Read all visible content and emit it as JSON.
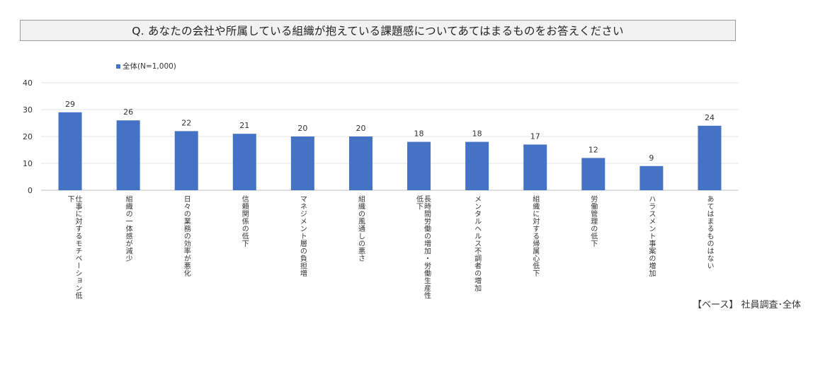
{
  "chart_data": {
    "type": "bar",
    "title": "Q. あなたの会社や所属している組織が抱えている課題感についてあてはまるものをお答えください",
    "categories": [
      "仕事に対するモチベーション低下",
      "組織の一体感が減少",
      "日々の業務の効率が悪化",
      "信頼関係の低下",
      "マネジメント層の負担増",
      "組織の風通しの悪さ",
      "長時間労働の増加・労働生産性低下",
      "メンタルヘルス不調者の増加",
      "組織に対する帰属心低下",
      "労働管理の低下",
      "ハラスメント事案の増加",
      "あてはまるものはない"
    ],
    "series": [
      {
        "name": "全体(N=1,000)",
        "values": [
          29,
          26,
          22,
          21,
          20,
          20,
          18,
          18,
          17,
          12,
          9,
          24
        ]
      }
    ],
    "y_ticks": [
      "0",
      "10",
      "20",
      "30",
      "40"
    ],
    "ylim": [
      0,
      40
    ],
    "grid": true,
    "legend_position": "top-left",
    "bar_color": "#4472C4"
  },
  "base_note": "【ベース】 社員調査･全体"
}
